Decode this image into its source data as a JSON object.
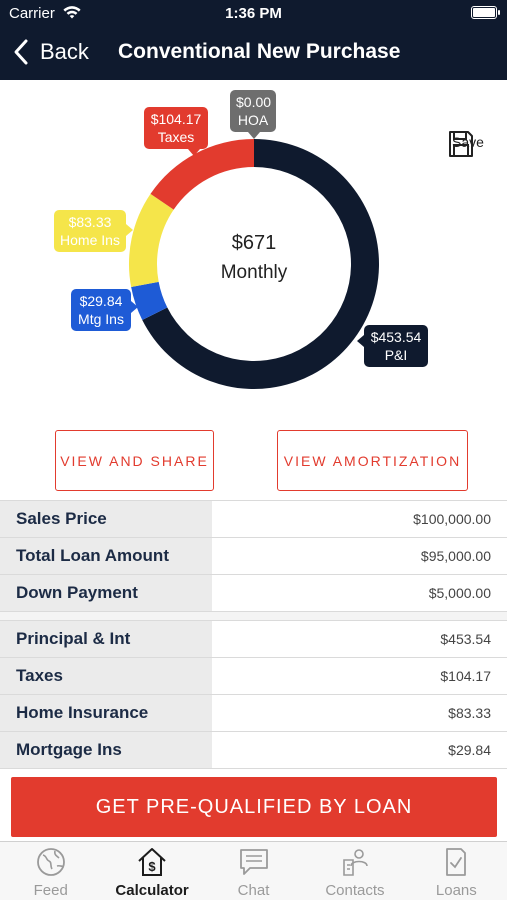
{
  "status_bar": {
    "carrier": "Carrier",
    "time": "1:36 PM"
  },
  "nav": {
    "back_label": "Back",
    "title": "Conventional New Purchase"
  },
  "chart_data": {
    "type": "pie",
    "center_value": "$671",
    "center_label": "Monthly",
    "slices": [
      {
        "label": "P&I",
        "value": 453.54,
        "display": "$453.54",
        "color": "#0f1a2e"
      },
      {
        "label": "Mtg Ins",
        "value": 29.84,
        "display": "$29.84",
        "color": "#1e5bd6"
      },
      {
        "label": "Home Ins",
        "value": 83.33,
        "display": "$83.33",
        "color": "#f5e54a"
      },
      {
        "label": "Taxes",
        "value": 104.17,
        "display": "$104.17",
        "color": "#e23b2e"
      },
      {
        "label": "HOA",
        "value": 0.0,
        "display": "$0.00",
        "color": "#6e6e6e"
      }
    ]
  },
  "save_label": "Save",
  "buttons": {
    "view_share": "VIEW AND SHARE",
    "view_amortization": "VIEW AMORTIZATION"
  },
  "loan_summary": [
    {
      "label": "Sales Price",
      "value": "$100,000.00"
    },
    {
      "label": "Total Loan Amount",
      "value": "$95,000.00"
    },
    {
      "label": "Down Payment",
      "value": "$5,000.00"
    }
  ],
  "payment_breakdown": [
    {
      "label": "Principal & Int",
      "value": "$453.54"
    },
    {
      "label": "Taxes",
      "value": "$104.17"
    },
    {
      "label": "Home Insurance",
      "value": "$83.33"
    },
    {
      "label": "Mortgage Ins",
      "value": "$29.84"
    }
  ],
  "cta_label": "GET PRE-QUALIFIED BY LOAN",
  "tabs": [
    {
      "label": "Feed",
      "icon": "globe-icon"
    },
    {
      "label": "Calculator",
      "icon": "calculator-house-icon"
    },
    {
      "label": "Chat",
      "icon": "chat-icon"
    },
    {
      "label": "Contacts",
      "icon": "contacts-icon"
    },
    {
      "label": "Loans",
      "icon": "loans-icon"
    }
  ]
}
